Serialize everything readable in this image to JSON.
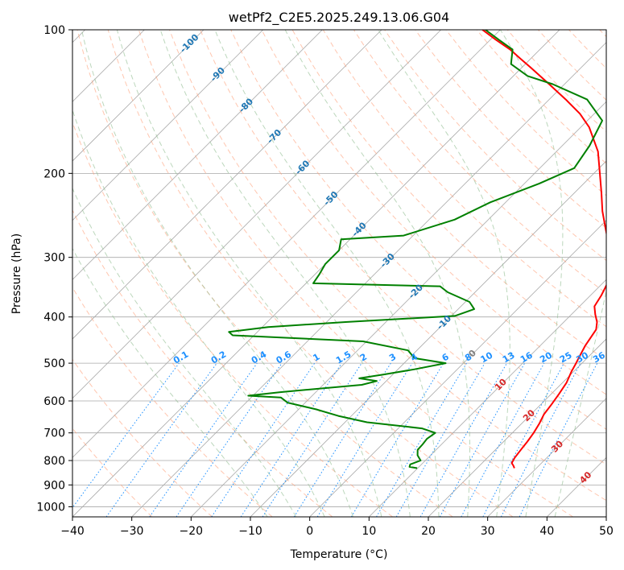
{
  "chart_data": {
    "type": "line",
    "subtype": "skew-T log-P diagram",
    "title": "wetPf2_C2E5.2025.249.13.06.G04",
    "xlabel": "Temperature (°C)",
    "ylabel": "Pressure (hPa)",
    "xlim": [
      -40,
      50
    ],
    "ylim_hPa": [
      1050,
      100
    ],
    "x_ticks": [
      -40,
      -30,
      -20,
      -10,
      0,
      10,
      20,
      30,
      40,
      50
    ],
    "x_tick_labels": [
      "−40",
      "−30",
      "−20",
      "−10",
      "0",
      "10",
      "20",
      "30",
      "40",
      "50"
    ],
    "y_ticks": [
      100,
      200,
      300,
      400,
      500,
      600,
      700,
      800,
      900,
      1000
    ],
    "y_tick_labels": [
      "100",
      "200",
      "300",
      "400",
      "500",
      "600",
      "700",
      "800",
      "900",
      "1000"
    ],
    "grid": true,
    "series": [
      {
        "name": "temperature",
        "color": "#ff0000",
        "points": [
          [
            830,
            26.3
          ],
          [
            820,
            25.7
          ],
          [
            810,
            25.0
          ],
          [
            790,
            24.6
          ],
          [
            760,
            24.3
          ],
          [
            730,
            24.0
          ],
          [
            700,
            23.6
          ],
          [
            670,
            23.0
          ],
          [
            640,
            22.2
          ],
          [
            610,
            21.8
          ],
          [
            580,
            21.3
          ],
          [
            550,
            20.7
          ],
          [
            520,
            19.6
          ],
          [
            500,
            19.0
          ],
          [
            480,
            18.3
          ],
          [
            460,
            17.6
          ],
          [
            440,
            17.1
          ],
          [
            425,
            16.7
          ],
          [
            410,
            15.6
          ],
          [
            395,
            14.0
          ],
          [
            380,
            12.5
          ],
          [
            360,
            11.8
          ],
          [
            340,
            10.8
          ],
          [
            320,
            8.9
          ],
          [
            300,
            7.0
          ],
          [
            280,
            4.2
          ],
          [
            260,
            1.1
          ],
          [
            240,
            -2.2
          ],
          [
            220,
            -5.4
          ],
          [
            200,
            -9.0
          ],
          [
            180,
            -13.0
          ],
          [
            160,
            -18.6
          ],
          [
            150,
            -22.4
          ],
          [
            140,
            -27.2
          ],
          [
            130,
            -32.6
          ],
          [
            120,
            -38.5
          ],
          [
            115,
            -41.7
          ],
          [
            110,
            -45.0
          ],
          [
            105,
            -49.0
          ],
          [
            100,
            -53.0
          ]
        ]
      },
      {
        "name": "dewpoint",
        "color": "#008000",
        "points": [
          [
            830,
            9.9
          ],
          [
            825,
            8.4
          ],
          [
            815,
            8.1
          ],
          [
            800,
            9.2
          ],
          [
            780,
            7.8
          ],
          [
            760,
            6.9
          ],
          [
            740,
            6.8
          ],
          [
            720,
            6.6
          ],
          [
            700,
            7.0
          ],
          [
            685,
            4.0
          ],
          [
            665,
            -6.3
          ],
          [
            645,
            -12.2
          ],
          [
            625,
            -17.0
          ],
          [
            605,
            -23.0
          ],
          [
            590,
            -25.0
          ],
          [
            585,
            -30.8
          ],
          [
            575,
            -26.0
          ],
          [
            555,
            -13.5
          ],
          [
            545,
            -11.6
          ],
          [
            538,
            -15.0
          ],
          [
            528,
            -11.5
          ],
          [
            515,
            -7.2
          ],
          [
            500,
            -3.0
          ],
          [
            488,
            -9.1
          ],
          [
            470,
            -11.5
          ],
          [
            450,
            -20.6
          ],
          [
            437,
            -43.6
          ],
          [
            430,
            -44.8
          ],
          [
            420,
            -39.0
          ],
          [
            410,
            -26.8
          ],
          [
            398,
            -9.4
          ],
          [
            385,
            -7.3
          ],
          [
            372,
            -9.3
          ],
          [
            355,
            -14.6
          ],
          [
            345,
            -16.9
          ],
          [
            340,
            -38.8
          ],
          [
            325,
            -39.3
          ],
          [
            310,
            -40.0
          ],
          [
            290,
            -40.0
          ],
          [
            275,
            -41.5
          ],
          [
            270,
            -31.6
          ],
          [
            250,
            -25.7
          ],
          [
            230,
            -22.6
          ],
          [
            210,
            -17.5
          ],
          [
            195,
            -14.2
          ],
          [
            175,
            -15.4
          ],
          [
            155,
            -17.5
          ],
          [
            140,
            -23.6
          ],
          [
            130,
            -32.0
          ],
          [
            125,
            -37.6
          ],
          [
            118,
            -42.4
          ],
          [
            110,
            -44.6
          ],
          [
            105,
            -48.5
          ],
          [
            100,
            -52.5
          ]
        ]
      }
    ],
    "reference_lines": {
      "dry_adiabats_C": [
        -30,
        -20,
        -10,
        0,
        10,
        20,
        30,
        40,
        50,
        60,
        70,
        80,
        90,
        100,
        110,
        120,
        130,
        140,
        150,
        160,
        170,
        180,
        190,
        200
      ],
      "moist_adiabats_C": [
        -10,
        -5,
        0,
        5,
        10,
        15,
        20,
        25,
        30,
        35,
        40
      ],
      "mixing_ratio_gkg": [
        0.1,
        0.2,
        0.4,
        0.6,
        1,
        1.5,
        2,
        3,
        4,
        6,
        8,
        10,
        13,
        16,
        20,
        25,
        30,
        36
      ]
    },
    "annotations": {
      "isotherm_labels": [
        "-100",
        "-90",
        "-80",
        "-70",
        "-60",
        "-50",
        "-40",
        "-30",
        "-20",
        "-10",
        "0",
        "10",
        "20",
        "30",
        "40"
      ],
      "isotherm_label_values": [
        -100,
        -90,
        -80,
        -70,
        -60,
        -50,
        -40,
        -30,
        -20,
        -10,
        0,
        10,
        20,
        30,
        40
      ],
      "mixing_ratio_labels": [
        "0.1",
        "0.2",
        "0.4",
        "0.6",
        "1",
        "1.5",
        "2",
        "3",
        "4",
        "6",
        "8",
        "10",
        "13",
        "16",
        "20",
        "25",
        "30",
        "36"
      ]
    },
    "colors": {
      "temperature": "#ff0000",
      "dewpoint": "#008000",
      "isotherm_label_cold": "#1f77b4",
      "isotherm_label_warm": "#d62728",
      "isotherm_label_zero": "#808080",
      "mixing_ratio": "#1e90ff",
      "dry_adiabat": "#ffa07a",
      "moist_adiabat": "#8fbc8f",
      "grid": "#a9a9a9"
    }
  }
}
